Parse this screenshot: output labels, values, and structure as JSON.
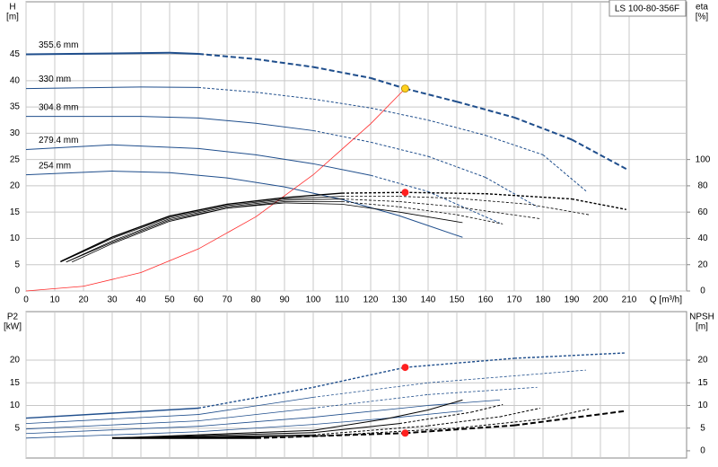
{
  "chart_data": [
    {
      "type": "line",
      "title": "LS 100-80-356F",
      "x_label": "Q [m³/h]",
      "y_label": "H",
      "y_unit": "[m]",
      "y2_label": "eta",
      "y2_unit": "[%]",
      "xlim": [
        0,
        230
      ],
      "ylim": [
        0,
        55
      ],
      "y2lim": [
        0,
        220
      ],
      "xticks": [
        0,
        10,
        20,
        30,
        40,
        50,
        60,
        70,
        80,
        90,
        100,
        110,
        120,
        130,
        140,
        150,
        160,
        170,
        180,
        190,
        200,
        210
      ],
      "yticks": [
        0,
        5,
        10,
        15,
        20,
        25,
        30,
        35,
        40,
        45
      ],
      "y2ticks": [
        0,
        20,
        40,
        60,
        80,
        100
      ],
      "grid": true,
      "series": [
        {
          "name": "355.6 mm",
          "color": "#1f4e8c",
          "width": 2,
          "dash_from": 60,
          "x": [
            0,
            50,
            60,
            80,
            100,
            120,
            132,
            150,
            170,
            190,
            209
          ],
          "values": [
            45,
            45.3,
            45.1,
            44.1,
            42.6,
            40.5,
            38.5,
            36,
            33,
            28.8,
            23.2
          ]
        },
        {
          "name": "330 mm",
          "color": "#1f4e8c",
          "width": 1,
          "dash_from": 60,
          "x": [
            0,
            40,
            60,
            80,
            100,
            120,
            140,
            160,
            180,
            195
          ],
          "values": [
            38.5,
            38.8,
            38.7,
            37.8,
            36.5,
            34.8,
            32.5,
            29.6,
            25.9,
            19
          ]
        },
        {
          "name": "304.8 mm",
          "color": "#1f4e8c",
          "width": 1,
          "dash_from": 100,
          "x": [
            0,
            40,
            60,
            80,
            100,
            120,
            140,
            160,
            178
          ],
          "values": [
            33.2,
            33.2,
            32.9,
            31.9,
            30.5,
            28.3,
            25.6,
            21.6,
            16
          ]
        },
        {
          "name": "279.4 mm",
          "color": "#1f4e8c",
          "width": 1,
          "dash_from": 120,
          "x": [
            0,
            30,
            60,
            80,
            100,
            120,
            140,
            165
          ],
          "values": [
            26.9,
            27.8,
            27.1,
            25.9,
            24.2,
            22,
            18.9,
            12.9
          ]
        },
        {
          "name": "254 mm",
          "color": "#1f4e8c",
          "width": 1,
          "x": [
            0,
            30,
            50,
            70,
            90,
            110,
            130,
            152
          ],
          "values": [
            22.1,
            22.8,
            22.5,
            21.5,
            19.8,
            17.4,
            14.3,
            10.2
          ]
        },
        {
          "color": "#ff2a2a",
          "width": 0.8,
          "x": [
            0,
            20,
            40,
            60,
            80,
            100,
            120,
            132
          ],
          "values": [
            0,
            0.9,
            3.5,
            8,
            14.1,
            22.1,
            31.8,
            38.5
          ]
        },
        {
          "color": "#000000",
          "width": 1.4,
          "axis": "y2",
          "dash_from": 110,
          "x": [
            12,
            30,
            50,
            70,
            90,
            110,
            132,
            160,
            190,
            209
          ],
          "values": [
            22.4,
            41,
            57,
            66,
            71,
            74.4,
            75,
            74,
            70,
            62
          ]
        },
        {
          "color": "#000000",
          "width": 0.8,
          "axis": "y2",
          "dash_from": 110,
          "x": [
            12,
            30,
            50,
            70,
            90,
            110,
            130,
            150,
            175,
            196
          ],
          "values": [
            22,
            40,
            56,
            65,
            70,
            72,
            72,
            70.5,
            66,
            58
          ]
        },
        {
          "color": "#000000",
          "width": 0.8,
          "axis": "y2",
          "dash_from": 110,
          "x": [
            14,
            30,
            50,
            70,
            90,
            110,
            130,
            150,
            179
          ],
          "values": [
            22,
            38,
            55,
            64,
            69,
            70,
            68,
            64,
            55
          ]
        },
        {
          "color": "#000000",
          "width": 0.8,
          "axis": "y2",
          "dash_from": 110,
          "x": [
            14,
            30,
            50,
            70,
            90,
            110,
            130,
            150,
            166
          ],
          "values": [
            22,
            37,
            54,
            63,
            68,
            68,
            64,
            58,
            51
          ]
        },
        {
          "color": "#000000",
          "width": 0.8,
          "axis": "y2",
          "x": [
            16,
            30,
            50,
            70,
            90,
            110,
            130,
            152
          ],
          "values": [
            22,
            36,
            53,
            63,
            67,
            66,
            60,
            52
          ]
        }
      ],
      "points": [
        {
          "x": 132,
          "y": 38.5,
          "color": "#ffd21e"
        },
        {
          "x": 132,
          "y": 75,
          "axis": "y2",
          "color": "#ff2020"
        }
      ]
    },
    {
      "type": "line",
      "y_label": "P2",
      "y_unit": "[kW]",
      "y2_label": "NPSH",
      "y2_unit": "[m]",
      "xlim": [
        0,
        230
      ],
      "ylim": [
        -1.6,
        30.7
      ],
      "y2lim": [
        -1.6,
        30.7
      ],
      "xticks": [
        0,
        10,
        20,
        30,
        40,
        50,
        60,
        70,
        80,
        90,
        100,
        110,
        120,
        130,
        140,
        150,
        160,
        170,
        180,
        190,
        200,
        210
      ],
      "yticks": [
        5,
        10,
        15,
        20
      ],
      "y2ticks": [
        0,
        5,
        10,
        15,
        20
      ],
      "grid": true,
      "series": [
        {
          "color": "#1f4e8c",
          "width": 1.4,
          "dash_from": 60,
          "x": [
            0,
            60,
            100,
            132,
            170,
            209
          ],
          "values": [
            7.2,
            9.4,
            14,
            18.4,
            20.4,
            21.6
          ]
        },
        {
          "color": "#1f4e8c",
          "width": 0.8,
          "dash_from": 100,
          "x": [
            0,
            60,
            100,
            140,
            195
          ],
          "values": [
            6,
            8,
            11.8,
            15,
            17.8
          ]
        },
        {
          "color": "#1f4e8c",
          "width": 0.8,
          "dash_from": 100,
          "x": [
            0,
            60,
            100,
            140,
            178
          ],
          "values": [
            4.8,
            6.6,
            9.4,
            12.4,
            14
          ]
        },
        {
          "color": "#1f4e8c",
          "width": 0.8,
          "x": [
            0,
            60,
            100,
            140,
            165
          ],
          "values": [
            3.8,
            5.4,
            7.4,
            10,
            11.2
          ]
        },
        {
          "color": "#1f4e8c",
          "width": 0.8,
          "x": [
            0,
            60,
            100,
            130,
            152
          ],
          "values": [
            2.8,
            4.2,
            5.8,
            7.4,
            8.8
          ]
        },
        {
          "color": "#000000",
          "width": 2,
          "axis": "y2",
          "dash_from": 80,
          "x": [
            30,
            80,
            132,
            170,
            209
          ],
          "values": [
            2.8,
            2.8,
            3.9,
            5.6,
            8.8
          ]
        },
        {
          "color": "#000000",
          "width": 1,
          "axis": "y2",
          "dash_from": 100,
          "x": [
            30,
            100,
            150,
            180,
            196
          ],
          "values": [
            2.8,
            3.2,
            5,
            7,
            9.2
          ]
        },
        {
          "color": "#000000",
          "width": 1,
          "axis": "y2",
          "dash_from": 100,
          "x": [
            30,
            100,
            140,
            165,
            179
          ],
          "values": [
            2.8,
            3.5,
            5.5,
            7.5,
            9.4
          ]
        },
        {
          "color": "#000000",
          "width": 1,
          "axis": "y2",
          "dash_from": 130,
          "x": [
            30,
            100,
            130,
            155,
            166
          ],
          "values": [
            2.8,
            4,
            6,
            8.5,
            10.2
          ]
        },
        {
          "color": "#000000",
          "width": 1,
          "axis": "y2",
          "x": [
            30,
            100,
            125,
            140,
            152
          ],
          "values": [
            2.8,
            4.5,
            7,
            9,
            11.2
          ]
        }
      ],
      "points": [
        {
          "x": 132,
          "y": 18.4,
          "color": "#ff2020"
        },
        {
          "x": 132,
          "y": 3.9,
          "axis": "y2",
          "color": "#ff2020"
        }
      ]
    }
  ]
}
